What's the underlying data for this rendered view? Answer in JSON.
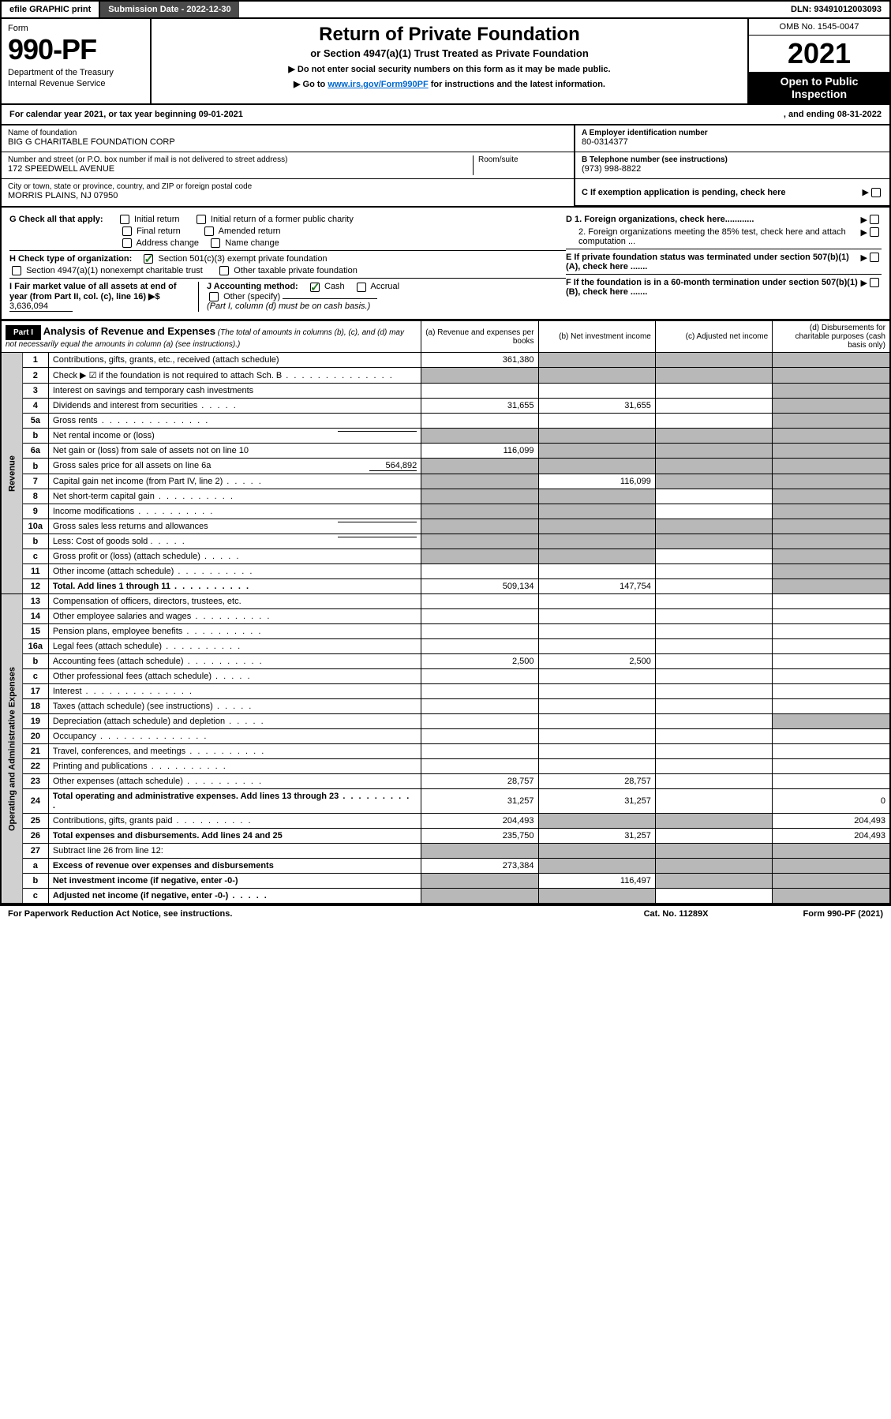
{
  "topbar": {
    "efile": "efile GRAPHIC print",
    "submission_label": "Submission Date - 2022-12-30",
    "dln": "DLN: 93491012003093"
  },
  "header": {
    "form_label": "Form",
    "form_number": "990-PF",
    "dept1": "Department of the Treasury",
    "dept2": "Internal Revenue Service",
    "title": "Return of Private Foundation",
    "subtitle": "or Section 4947(a)(1) Trust Treated as Private Foundation",
    "instr1": "▶ Do not enter social security numbers on this form as it may be made public.",
    "instr2_pre": "▶ Go to ",
    "instr2_link": "www.irs.gov/Form990PF",
    "instr2_post": " for instructions and the latest information.",
    "omb": "OMB No. 1545-0047",
    "year": "2021",
    "inspect": "Open to Public Inspection"
  },
  "calyear": {
    "text1": "For calendar year 2021, or tax year beginning 09-01-2021",
    "text2": ", and ending 08-31-2022"
  },
  "id": {
    "name_lbl": "Name of foundation",
    "name": "BIG G CHARITABLE FOUNDATION CORP",
    "addr_lbl": "Number and street (or P.O. box number if mail is not delivered to street address)",
    "addr": "172 SPEEDWELL AVENUE",
    "room_lbl": "Room/suite",
    "city_lbl": "City or town, state or province, country, and ZIP or foreign postal code",
    "city": "MORRIS PLAINS, NJ  07950",
    "ein_lbl": "A Employer identification number",
    "ein": "80-0314377",
    "tel_lbl": "B Telephone number (see instructions)",
    "tel": "(973) 998-8822",
    "c_lbl": "C If exemption application is pending, check here"
  },
  "checks": {
    "g_label": "G Check all that apply:",
    "g_items": [
      "Initial return",
      "Initial return of a former public charity",
      "Final return",
      "Amended return",
      "Address change",
      "Name change"
    ],
    "h_label": "H Check type of organization:",
    "h1": "Section 501(c)(3) exempt private foundation",
    "h2": "Section 4947(a)(1) nonexempt charitable trust",
    "h3": "Other taxable private foundation",
    "i_label": "I Fair market value of all assets at end of year (from Part II, col. (c), line 16) ▶$",
    "i_value": "3,636,094",
    "j_label": "J Accounting method:",
    "j_cash": "Cash",
    "j_accrual": "Accrual",
    "j_other": "Other (specify)",
    "j_note": "(Part I, column (d) must be on cash basis.)",
    "d1": "D 1. Foreign organizations, check here............",
    "d2": "2. Foreign organizations meeting the 85% test, check here and attach computation ...",
    "e": "E  If private foundation status was terminated under section 507(b)(1)(A), check here .......",
    "f": "F  If the foundation is in a 60-month termination under section 507(b)(1)(B), check here .......",
    "triangle": "▶"
  },
  "part1": {
    "label": "Part I",
    "title": "Analysis of Revenue and Expenses",
    "title_note": "(The total of amounts in columns (b), (c), and (d) may not necessarily equal the amounts in column (a) (see instructions).)",
    "col_a": "(a)   Revenue and expenses per books",
    "col_b": "(b)   Net investment income",
    "col_c": "(c)   Adjusted net income",
    "col_d": "(d)   Disbursements for charitable purposes (cash basis only)",
    "side_revenue": "Revenue",
    "side_expenses": "Operating and Administrative Expenses",
    "rows": [
      {
        "n": "1",
        "desc": "Contributions, gifts, grants, etc., received (attach schedule)",
        "a": "361,380",
        "b": "",
        "c": "",
        "d": "",
        "bShade": true,
        "cShade": true,
        "dShade": true
      },
      {
        "n": "2",
        "desc": "Check ▶ ☑ if the foundation is not required to attach Sch. B",
        "a": "",
        "b": "",
        "c": "",
        "d": "",
        "aShade": true,
        "bShade": true,
        "cShade": true,
        "dShade": true,
        "dotsL": true
      },
      {
        "n": "3",
        "desc": "Interest on savings and temporary cash investments",
        "a": "",
        "b": "",
        "c": "",
        "d": "",
        "dShade": true
      },
      {
        "n": "4",
        "desc": "Dividends and interest from securities",
        "a": "31,655",
        "b": "31,655",
        "c": "",
        "d": "",
        "dShade": true,
        "dotsS": true
      },
      {
        "n": "5a",
        "desc": "Gross rents",
        "a": "",
        "b": "",
        "c": "",
        "d": "",
        "dShade": true,
        "dotsL": true
      },
      {
        "n": "b",
        "desc": "Net rental income or (loss)",
        "a": "",
        "b": "",
        "c": "",
        "d": "",
        "aShade": true,
        "bShade": true,
        "cShade": true,
        "dShade": true,
        "inline": true
      },
      {
        "n": "6a",
        "desc": "Net gain or (loss) from sale of assets not on line 10",
        "a": "116,099",
        "b": "",
        "c": "",
        "d": "",
        "bShade": true,
        "cShade": true,
        "dShade": true
      },
      {
        "n": "b",
        "desc": "Gross sales price for all assets on line 6a",
        "a": "",
        "b": "",
        "c": "",
        "d": "",
        "bShade": true,
        "cShade": true,
        "dShade": true,
        "inlineval": "564,892",
        "aShade": true
      },
      {
        "n": "7",
        "desc": "Capital gain net income (from Part IV, line 2)",
        "a": "",
        "b": "116,099",
        "c": "",
        "d": "",
        "aShade": true,
        "cShade": true,
        "dShade": true,
        "dotsS": true
      },
      {
        "n": "8",
        "desc": "Net short-term capital gain",
        "a": "",
        "b": "",
        "c": "",
        "d": "",
        "aShade": true,
        "bShade": true,
        "dShade": true,
        "dots": true
      },
      {
        "n": "9",
        "desc": "Income modifications",
        "a": "",
        "b": "",
        "c": "",
        "d": "",
        "aShade": true,
        "bShade": true,
        "dShade": true,
        "dots": true
      },
      {
        "n": "10a",
        "desc": "Gross sales less returns and allowances",
        "a": "",
        "b": "",
        "c": "",
        "d": "",
        "aShade": true,
        "bShade": true,
        "cShade": true,
        "dShade": true,
        "inline": true
      },
      {
        "n": "b",
        "desc": "Less: Cost of goods sold",
        "a": "",
        "b": "",
        "c": "",
        "d": "",
        "aShade": true,
        "bShade": true,
        "cShade": true,
        "dShade": true,
        "inline": true,
        "dotsS": true
      },
      {
        "n": "c",
        "desc": "Gross profit or (loss) (attach schedule)",
        "a": "",
        "b": "",
        "c": "",
        "d": "",
        "aShade": true,
        "bShade": true,
        "dShade": true,
        "dotsS": true
      },
      {
        "n": "11",
        "desc": "Other income (attach schedule)",
        "a": "",
        "b": "",
        "c": "",
        "d": "",
        "dShade": true,
        "dots": true
      },
      {
        "n": "12",
        "desc": "Total. Add lines 1 through 11",
        "a": "509,134",
        "b": "147,754",
        "c": "",
        "d": "",
        "dShade": true,
        "bold": true,
        "dots": true
      },
      {
        "n": "13",
        "desc": "Compensation of officers, directors, trustees, etc.",
        "a": "",
        "b": "",
        "c": "",
        "d": ""
      },
      {
        "n": "14",
        "desc": "Other employee salaries and wages",
        "a": "",
        "b": "",
        "c": "",
        "d": "",
        "dots": true
      },
      {
        "n": "15",
        "desc": "Pension plans, employee benefits",
        "a": "",
        "b": "",
        "c": "",
        "d": "",
        "dots": true
      },
      {
        "n": "16a",
        "desc": "Legal fees (attach schedule)",
        "a": "",
        "b": "",
        "c": "",
        "d": "",
        "dots": true
      },
      {
        "n": "b",
        "desc": "Accounting fees (attach schedule)",
        "a": "2,500",
        "b": "2,500",
        "c": "",
        "d": "",
        "dots": true
      },
      {
        "n": "c",
        "desc": "Other professional fees (attach schedule)",
        "a": "",
        "b": "",
        "c": "",
        "d": "",
        "dotsS": true
      },
      {
        "n": "17",
        "desc": "Interest",
        "a": "",
        "b": "",
        "c": "",
        "d": "",
        "dotsL": true
      },
      {
        "n": "18",
        "desc": "Taxes (attach schedule) (see instructions)",
        "a": "",
        "b": "",
        "c": "",
        "d": "",
        "dotsS": true
      },
      {
        "n": "19",
        "desc": "Depreciation (attach schedule) and depletion",
        "a": "",
        "b": "",
        "c": "",
        "d": "",
        "dShade": true,
        "dotsS": true
      },
      {
        "n": "20",
        "desc": "Occupancy",
        "a": "",
        "b": "",
        "c": "",
        "d": "",
        "dotsL": true
      },
      {
        "n": "21",
        "desc": "Travel, conferences, and meetings",
        "a": "",
        "b": "",
        "c": "",
        "d": "",
        "dots": true
      },
      {
        "n": "22",
        "desc": "Printing and publications",
        "a": "",
        "b": "",
        "c": "",
        "d": "",
        "dots": true
      },
      {
        "n": "23",
        "desc": "Other expenses (attach schedule)",
        "a": "28,757",
        "b": "28,757",
        "c": "",
        "d": "",
        "dots": true
      },
      {
        "n": "24",
        "desc": "Total operating and administrative expenses. Add lines 13 through 23",
        "a": "31,257",
        "b": "31,257",
        "c": "",
        "d": "0",
        "bold": true,
        "dots": true
      },
      {
        "n": "25",
        "desc": "Contributions, gifts, grants paid",
        "a": "204,493",
        "b": "",
        "c": "",
        "d": "204,493",
        "bShade": true,
        "cShade": true,
        "dots": true
      },
      {
        "n": "26",
        "desc": "Total expenses and disbursements. Add lines 24 and 25",
        "a": "235,750",
        "b": "31,257",
        "c": "",
        "d": "204,493",
        "bold": true
      },
      {
        "n": "27",
        "desc": "Subtract line 26 from line 12:",
        "a": "",
        "b": "",
        "c": "",
        "d": "",
        "aShade": true,
        "bShade": true,
        "cShade": true,
        "dShade": true
      },
      {
        "n": "a",
        "desc": "Excess of revenue over expenses and disbursements",
        "a": "273,384",
        "b": "",
        "c": "",
        "d": "",
        "bShade": true,
        "cShade": true,
        "dShade": true,
        "bold": true
      },
      {
        "n": "b",
        "desc": "Net investment income (if negative, enter -0-)",
        "a": "",
        "b": "116,497",
        "c": "",
        "d": "",
        "aShade": true,
        "cShade": true,
        "dShade": true,
        "bold": true
      },
      {
        "n": "c",
        "desc": "Adjusted net income (if negative, enter -0-)",
        "a": "",
        "b": "",
        "c": "",
        "d": "",
        "aShade": true,
        "bShade": true,
        "dShade": true,
        "bold": true,
        "dotsS": true
      }
    ]
  },
  "footer": {
    "left": "For Paperwork Reduction Act Notice, see instructions.",
    "mid": "Cat. No. 11289X",
    "right": "Form 990-PF (2021)"
  },
  "colors": {
    "link": "#0066cc",
    "check": "#2a7a2a",
    "shade": "#b8b8b8",
    "lightshade": "#d8d8d8",
    "topbar_dark": "#4a4a4a"
  }
}
